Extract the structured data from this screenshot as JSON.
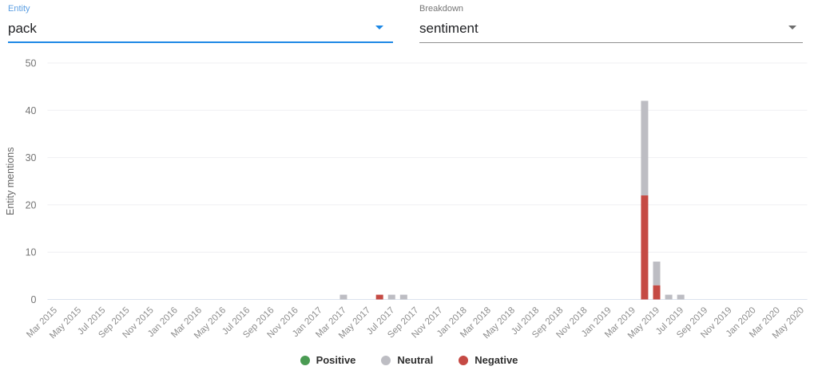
{
  "header": {
    "entity": {
      "label": "Entity",
      "value": "pack"
    },
    "breakdown": {
      "label": "Breakdown",
      "value": "sentiment"
    }
  },
  "colors": {
    "accent_blue": "#1e88e5",
    "entity_label_blue": "#5b9ee2",
    "positive": "#4a9b53",
    "neutral": "#bdbdc3",
    "negative": "#c54a44"
  },
  "chart_data": {
    "type": "bar",
    "stacked": true,
    "title": "",
    "xlabel": "",
    "ylabel": "Entity mentions",
    "ylim": [
      0,
      50
    ],
    "yticks": [
      0,
      10,
      20,
      30,
      40,
      50
    ],
    "grid": true,
    "legend_position": "bottom",
    "tick_labels": [
      "Mar 2015",
      "May 2015",
      "Jul 2015",
      "Sep 2015",
      "Nov 2015",
      "Jan 2016",
      "Mar 2016",
      "May 2016",
      "Jul 2016",
      "Sep 2016",
      "Nov 2016",
      "Jan 2017",
      "Mar 2017",
      "May 2017",
      "Jul 2017",
      "Sep 2017",
      "Nov 2017",
      "Jan 2018",
      "Mar 2018",
      "May 2018",
      "Jul 2018",
      "Sep 2018",
      "Nov 2018",
      "Jan 2019",
      "Mar 2019",
      "May 2019",
      "Jul 2019",
      "Sep 2019",
      "Nov 2019",
      "Jan 2020",
      "Mar 2020",
      "May 2020"
    ],
    "stack_order": [
      "Negative",
      "Neutral",
      "Positive"
    ],
    "series": [
      {
        "name": "Positive",
        "color": "#4a9b53",
        "points": []
      },
      {
        "name": "Neutral",
        "color": "#bdbdc3",
        "points": [
          {
            "month": "Mar 2017",
            "value": 1
          },
          {
            "month": "Jul 2017",
            "value": 1
          },
          {
            "month": "Aug 2017",
            "value": 1
          },
          {
            "month": "Apr 2019",
            "value": 20
          },
          {
            "month": "May 2019",
            "value": 5
          },
          {
            "month": "Jun 2019",
            "value": 1
          },
          {
            "month": "Jul 2019",
            "value": 1
          }
        ]
      },
      {
        "name": "Negative",
        "color": "#c54a44",
        "points": [
          {
            "month": "Jun 2017",
            "value": 1
          },
          {
            "month": "Apr 2019",
            "value": 22
          },
          {
            "month": "May 2019",
            "value": 3
          }
        ]
      }
    ],
    "legend": [
      {
        "label": "Positive",
        "color": "#4a9b53"
      },
      {
        "label": "Neutral",
        "color": "#bdbdc3"
      },
      {
        "label": "Negative",
        "color": "#c54a44"
      }
    ]
  }
}
